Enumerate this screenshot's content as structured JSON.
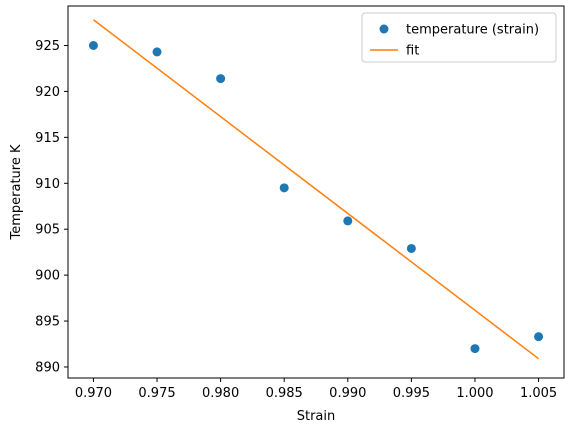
{
  "chart_data": {
    "type": "scatter",
    "xlabel": "Strain",
    "ylabel": "Temperature K",
    "xlim": [
      0.968,
      1.007
    ],
    "ylim": [
      888.8,
      929.3
    ],
    "xticks": [
      "0.970",
      "0.975",
      "0.980",
      "0.985",
      "0.990",
      "0.995",
      "1.000",
      "1.005"
    ],
    "yticks": [
      "890",
      "895",
      "900",
      "905",
      "910",
      "915",
      "920",
      "925"
    ],
    "legend_position": "top-right",
    "grid": false,
    "series": [
      {
        "name": "temperature (strain)",
        "type": "scatter",
        "color": "#1f77b4",
        "points": [
          {
            "x": 0.97,
            "y": 925.0
          },
          {
            "x": 0.975,
            "y": 924.3
          },
          {
            "x": 0.98,
            "y": 921.4
          },
          {
            "x": 0.985,
            "y": 909.5
          },
          {
            "x": 0.99,
            "y": 905.9
          },
          {
            "x": 0.995,
            "y": 902.9
          },
          {
            "x": 1.0,
            "y": 892.0
          },
          {
            "x": 1.005,
            "y": 893.3
          }
        ]
      },
      {
        "name": "fit",
        "type": "line",
        "color": "#ff7f0e",
        "points": [
          {
            "x": 0.97,
            "y": 927.8
          },
          {
            "x": 1.005,
            "y": 890.9
          }
        ]
      }
    ]
  }
}
